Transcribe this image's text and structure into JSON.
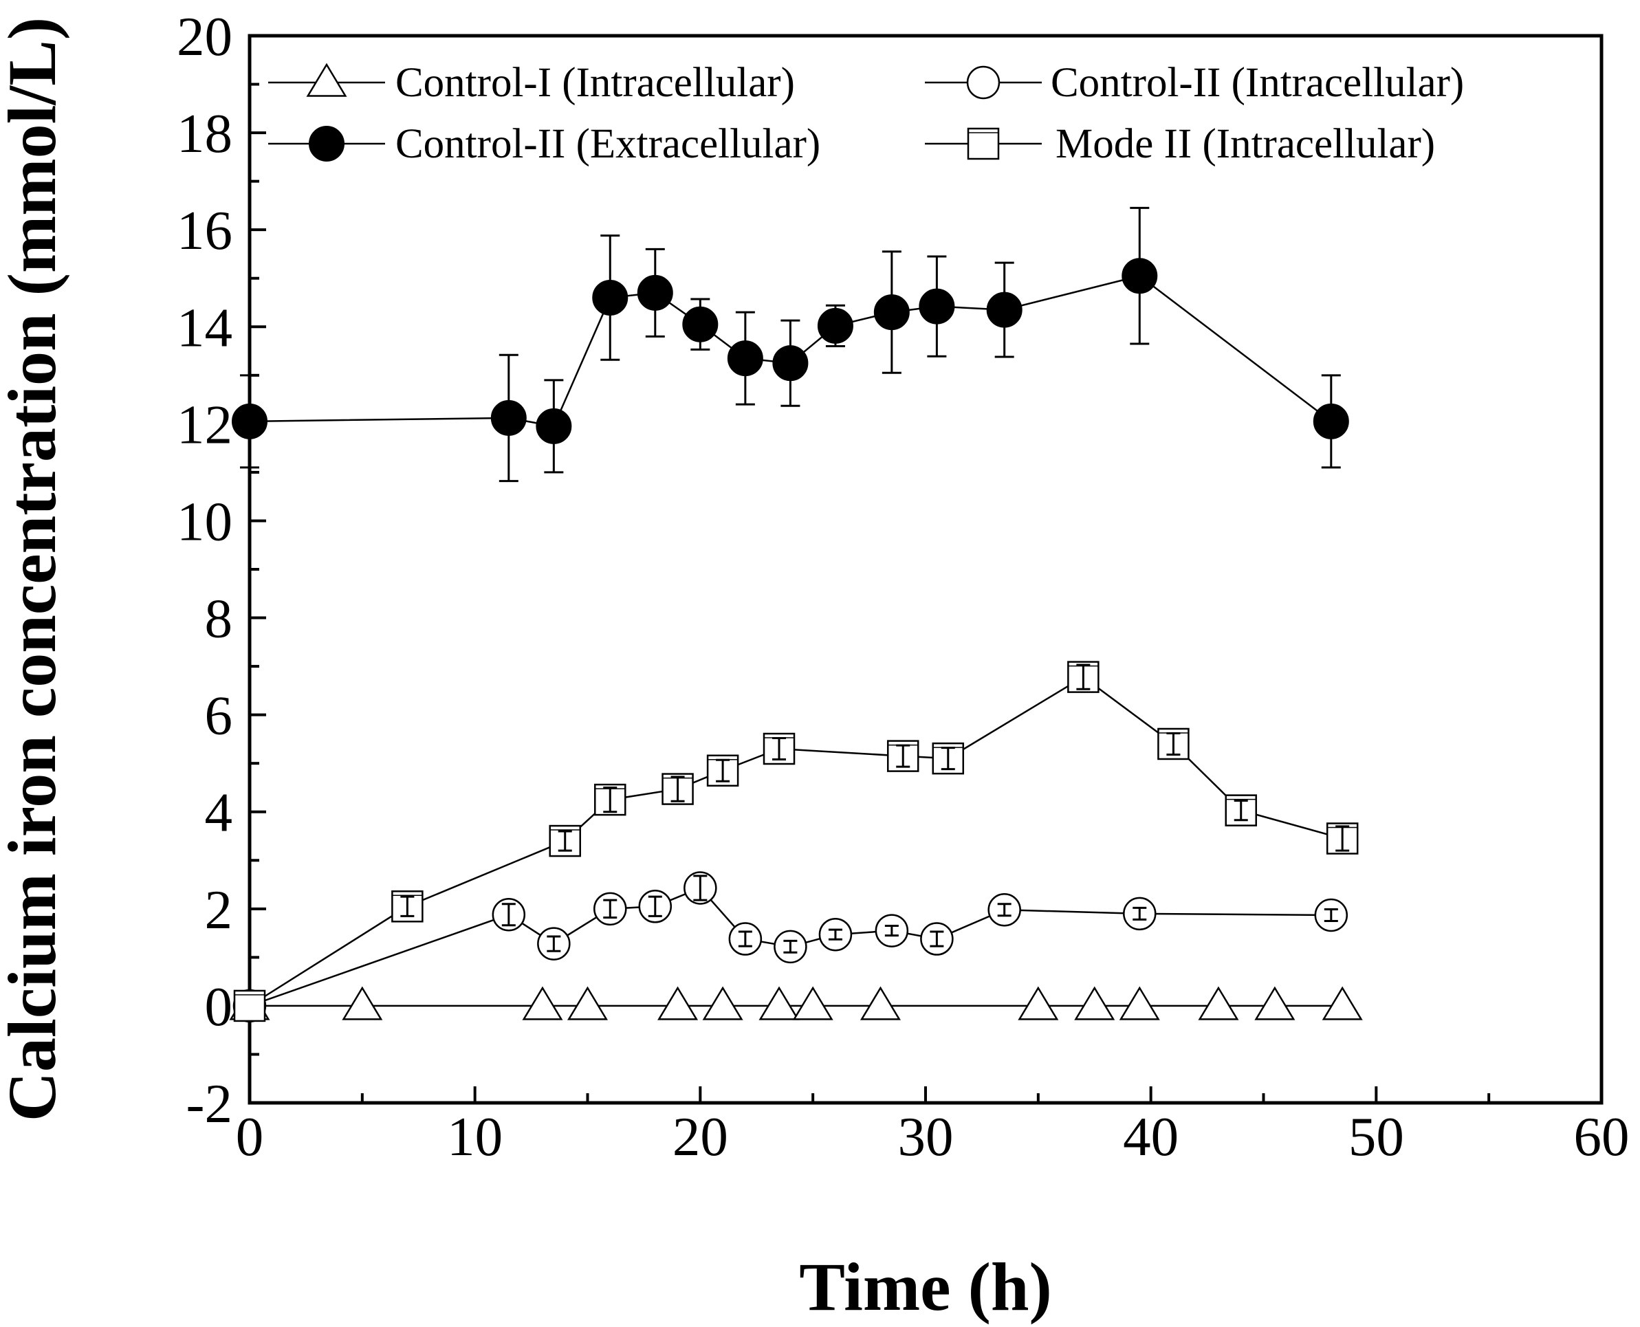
{
  "chart_data": {
    "type": "line",
    "title": "",
    "xlabel": "Time (h)",
    "ylabel": "Calcium iron concentration (mmol/L)",
    "xlim": [
      0,
      60
    ],
    "ylim": [
      -2,
      20
    ],
    "xticks": [
      0,
      10,
      20,
      30,
      40,
      50,
      60
    ],
    "yticks": [
      -2,
      0,
      2,
      4,
      6,
      8,
      10,
      12,
      14,
      16,
      18,
      20
    ],
    "grid": false,
    "legend_position": "top",
    "series": [
      {
        "name": "Control-I (Intracellular)",
        "marker": "triangle-open",
        "x": [
          0,
          5,
          13,
          15,
          19,
          21,
          23.5,
          25,
          28,
          35,
          37.5,
          39.5,
          43,
          45.5,
          48.5
        ],
        "y": [
          0,
          0,
          0,
          0,
          0,
          0,
          0,
          0,
          0,
          0,
          0,
          0,
          0,
          0,
          0
        ],
        "err": []
      },
      {
        "name": "Control-II (Intracellular)",
        "marker": "circle-open",
        "x": [
          0,
          11.5,
          13.5,
          16,
          18,
          20,
          22,
          24,
          26,
          28.5,
          30.5,
          33.5,
          39.5,
          48
        ],
        "y": [
          0,
          1.88,
          1.28,
          2.0,
          2.05,
          2.43,
          1.38,
          1.22,
          1.47,
          1.55,
          1.38,
          1.98,
          1.9,
          1.87
        ],
        "err": [
          0,
          0.22,
          0.15,
          0.18,
          0.2,
          0.25,
          0.15,
          0.12,
          0.1,
          0.1,
          0.15,
          0.12,
          0.12,
          0.12
        ]
      },
      {
        "name": "Control-II (Extracellular)",
        "marker": "circle-filled",
        "x": [
          0,
          11.5,
          13.5,
          16,
          18,
          20,
          22,
          24,
          26,
          28.5,
          30.5,
          33.5,
          39.5,
          48
        ],
        "y": [
          12.05,
          12.12,
          11.95,
          14.6,
          14.7,
          14.05,
          13.35,
          13.25,
          14.02,
          14.3,
          14.42,
          14.35,
          15.05,
          12.05
        ],
        "err": [
          0.95,
          1.3,
          0.95,
          1.28,
          0.9,
          0.52,
          0.95,
          0.88,
          0.42,
          1.25,
          1.03,
          0.97,
          1.4,
          0.95
        ]
      },
      {
        "name": "Mode II (Intracellular)",
        "marker": "square-open",
        "x": [
          0,
          7,
          14,
          16,
          19,
          21,
          23.5,
          29,
          31,
          37,
          41,
          44,
          48.5
        ],
        "y": [
          0,
          2.05,
          3.4,
          4.25,
          4.47,
          4.85,
          5.3,
          5.15,
          5.1,
          6.78,
          5.4,
          4.03,
          3.45
        ],
        "err": [
          0,
          0.2,
          0.2,
          0.25,
          0.25,
          0.22,
          0.22,
          0.22,
          0.22,
          0.25,
          0.22,
          0.2,
          0.25
        ]
      }
    ]
  }
}
